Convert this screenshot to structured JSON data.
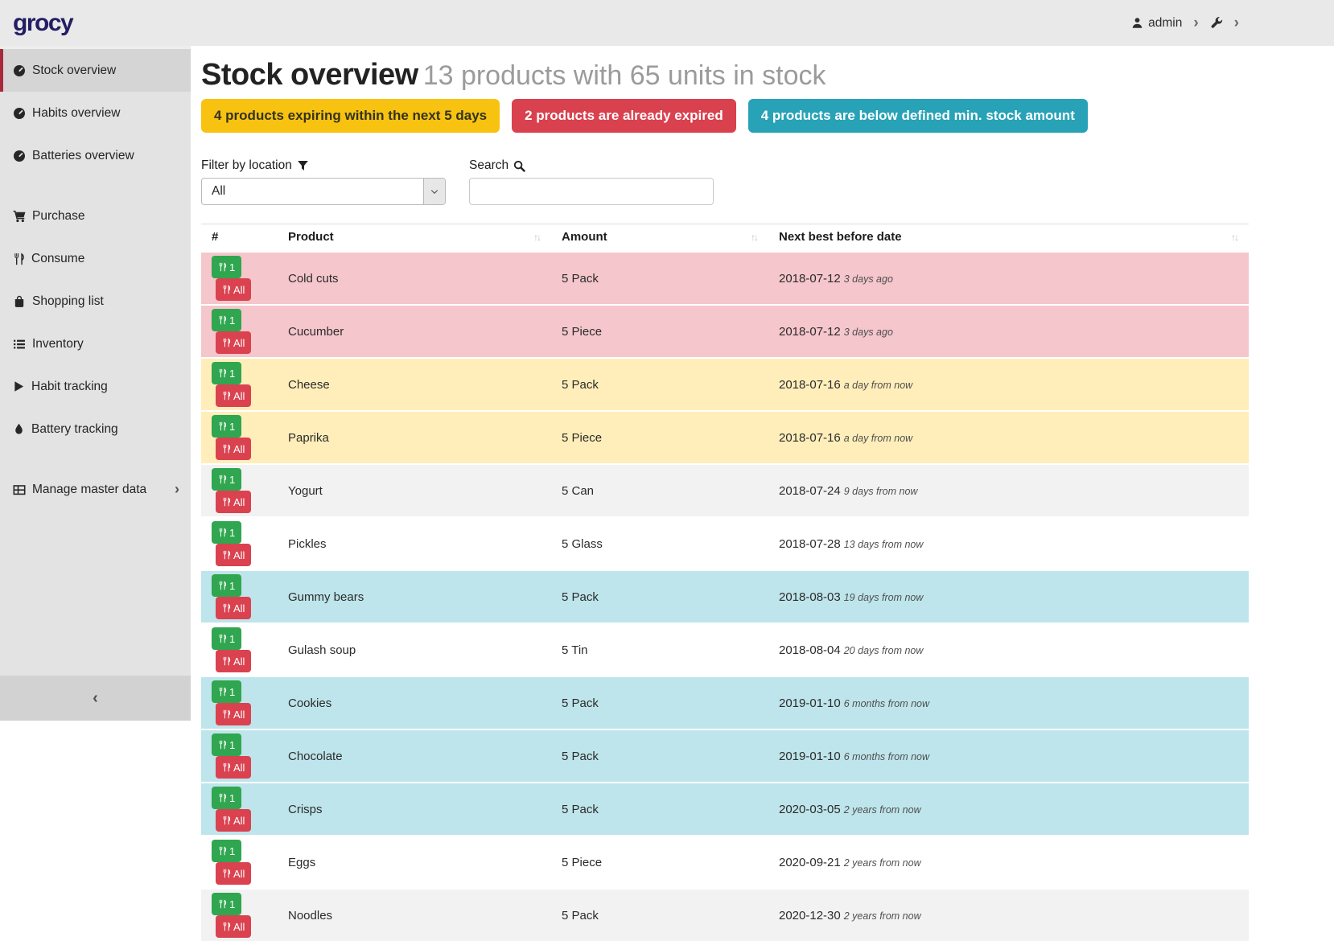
{
  "header": {
    "logo": "grocy",
    "user": "admin"
  },
  "sidebar": {
    "items": [
      {
        "label": "Stock overview",
        "icon": "tachometer-icon",
        "active": true,
        "new_section": false,
        "has_submenu": false
      },
      {
        "label": "Habits overview",
        "icon": "tachometer-icon",
        "active": false,
        "new_section": false,
        "has_submenu": false
      },
      {
        "label": "Batteries overview",
        "icon": "tachometer-icon",
        "active": false,
        "new_section": false,
        "has_submenu": false
      },
      {
        "label": "Purchase",
        "icon": "cart-icon",
        "active": false,
        "new_section": true,
        "has_submenu": false
      },
      {
        "label": "Consume",
        "icon": "utensils-icon",
        "active": false,
        "new_section": false,
        "has_submenu": false
      },
      {
        "label": "Shopping list",
        "icon": "shopping-bag-icon",
        "active": false,
        "new_section": false,
        "has_submenu": false
      },
      {
        "label": "Inventory",
        "icon": "list-icon",
        "active": false,
        "new_section": false,
        "has_submenu": false
      },
      {
        "label": "Habit tracking",
        "icon": "play-icon",
        "active": false,
        "new_section": false,
        "has_submenu": false
      },
      {
        "label": "Battery tracking",
        "icon": "droplet-icon",
        "active": false,
        "new_section": false,
        "has_submenu": false
      },
      {
        "label": "Manage master data",
        "icon": "table-icon",
        "active": false,
        "new_section": true,
        "has_submenu": true
      }
    ],
    "collapse_icon": "‹"
  },
  "page": {
    "title": "Stock overview",
    "subtitle": "13 products with 65 units in stock",
    "badges": [
      {
        "label": "4 products expiring within the next 5 days",
        "color": "#f8c211",
        "text_color": "#33331c"
      },
      {
        "label": "2 products are already expired",
        "color": "#d9414e",
        "text_color": "#ffffff"
      },
      {
        "label": "4 products are below defined min. stock amount",
        "color": "#28a2b7",
        "text_color": "#ffffff"
      }
    ],
    "filter": {
      "label": "Filter by location",
      "value": "All"
    },
    "search": {
      "label": "Search",
      "value": ""
    }
  },
  "table": {
    "columns": [
      "#",
      "Product",
      "Amount",
      "Next best before date"
    ],
    "row_button_labels": {
      "one": "1",
      "all": "All"
    },
    "button_colors": {
      "consume_one": "#2fa64f",
      "consume_all": "#da4250"
    },
    "status_colors": {
      "expired": "#f5c6cb",
      "expiring": "#ffeeba",
      "below-min": "#bee5eb",
      "stripe": "#f2f2f2",
      "none": "#ffffff"
    },
    "rows": [
      {
        "product": "Cold cuts",
        "amount": "5 Pack",
        "date": "2018-07-12",
        "relative": "3 days ago",
        "status": "expired"
      },
      {
        "product": "Cucumber",
        "amount": "5 Piece",
        "date": "2018-07-12",
        "relative": "3 days ago",
        "status": "expired"
      },
      {
        "product": "Cheese",
        "amount": "5 Pack",
        "date": "2018-07-16",
        "relative": "a day from now",
        "status": "expiring"
      },
      {
        "product": "Paprika",
        "amount": "5 Piece",
        "date": "2018-07-16",
        "relative": "a day from now",
        "status": "expiring"
      },
      {
        "product": "Yogurt",
        "amount": "5 Can",
        "date": "2018-07-24",
        "relative": "9 days from now",
        "status": "stripe"
      },
      {
        "product": "Pickles",
        "amount": "5 Glass",
        "date": "2018-07-28",
        "relative": "13 days from now",
        "status": "none"
      },
      {
        "product": "Gummy bears",
        "amount": "5 Pack",
        "date": "2018-08-03",
        "relative": "19 days from now",
        "status": "below-min"
      },
      {
        "product": "Gulash soup",
        "amount": "5 Tin",
        "date": "2018-08-04",
        "relative": "20 days from now",
        "status": "none"
      },
      {
        "product": "Cookies",
        "amount": "5 Pack",
        "date": "2019-01-10",
        "relative": "6 months from now",
        "status": "below-min"
      },
      {
        "product": "Chocolate",
        "amount": "5 Pack",
        "date": "2019-01-10",
        "relative": "6 months from now",
        "status": "below-min"
      },
      {
        "product": "Crisps",
        "amount": "5 Pack",
        "date": "2020-03-05",
        "relative": "2 years from now",
        "status": "below-min"
      },
      {
        "product": "Eggs",
        "amount": "5 Piece",
        "date": "2020-09-21",
        "relative": "2 years from now",
        "status": "none"
      },
      {
        "product": "Noodles",
        "amount": "5 Pack",
        "date": "2020-12-30",
        "relative": "2 years from now",
        "status": "stripe"
      }
    ]
  }
}
